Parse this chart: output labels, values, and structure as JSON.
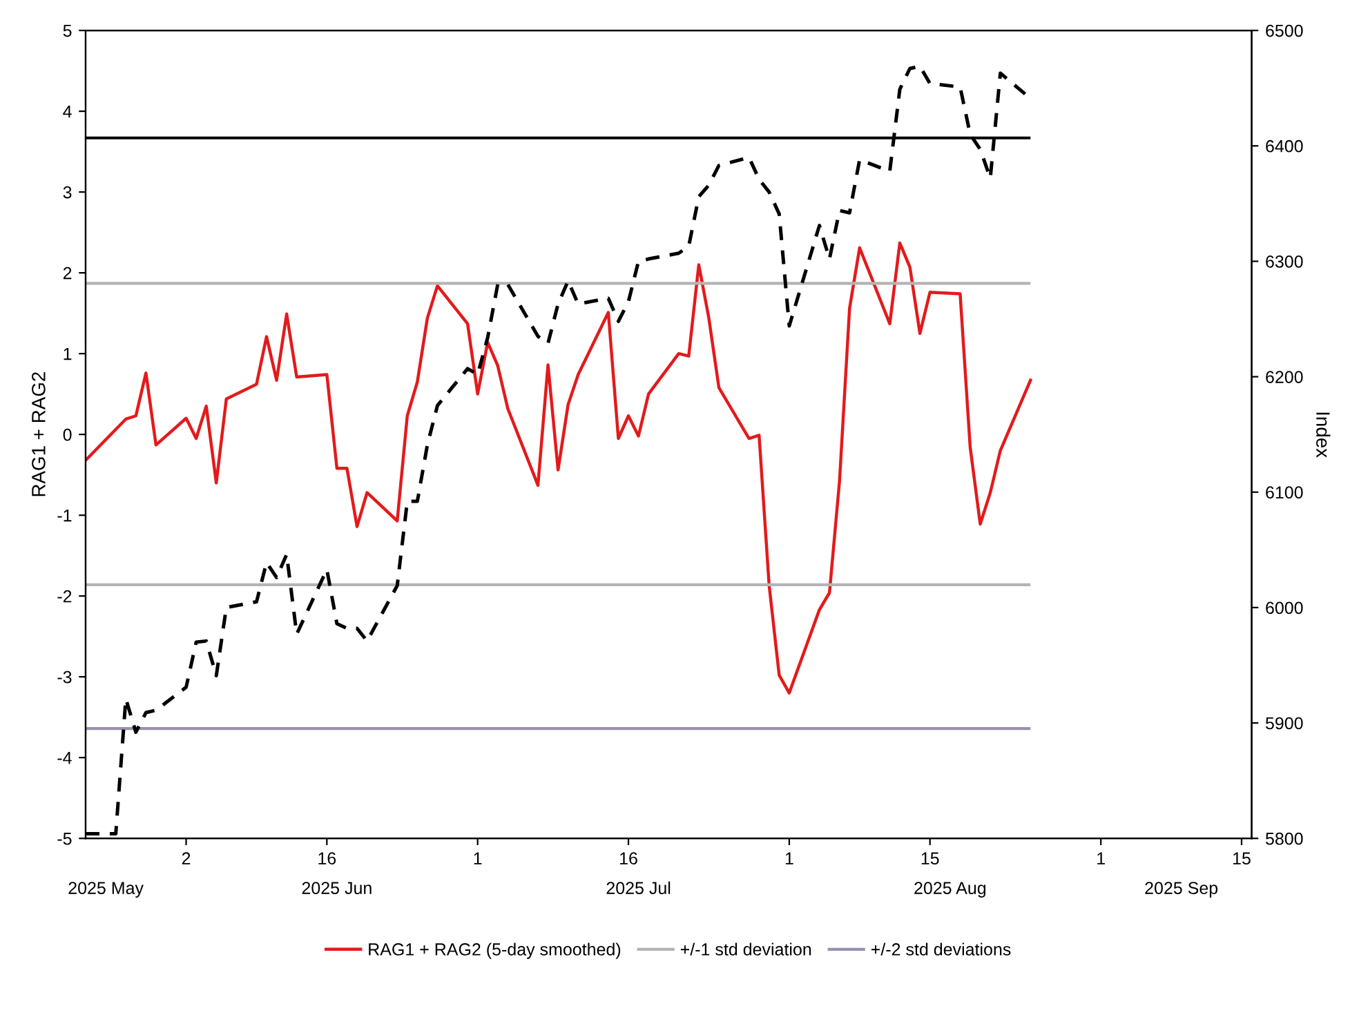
{
  "chart_data": {
    "type": "line",
    "ylabel": "RAG1 + RAG2",
    "y2label": "Index",
    "xlim": [
      "2025-05-23",
      "2025-09-16"
    ],
    "x2lim": [
      "2025-05-23",
      "2025-09-16"
    ],
    "xticks": [
      {
        "value": "2025-06-02",
        "label": "2"
      },
      {
        "value": "2025-06-16",
        "label": "16"
      },
      {
        "value": "2025-07-01",
        "label": "1"
      },
      {
        "value": "2025-07-16",
        "label": "16"
      },
      {
        "value": "2025-08-01",
        "label": "1"
      },
      {
        "value": "2025-08-15",
        "label": "15"
      },
      {
        "value": "2025-09-01",
        "label": "1"
      },
      {
        "value": "2025-09-15",
        "label": "15"
      }
    ],
    "x2ticks": [
      {
        "value": "2025-05-25",
        "label": "2025 May"
      },
      {
        "value": "2025-06-17",
        "label": "2025 Jun"
      },
      {
        "value": "2025-07-17",
        "label": "2025 Jul"
      },
      {
        "value": "2025-08-17",
        "label": "2025 Aug"
      },
      {
        "value": "2025-09-09",
        "label": "2025 Sep"
      }
    ],
    "ylim": [
      -5,
      5
    ],
    "yticks": [
      -5,
      -4,
      -3,
      -2,
      -1,
      0,
      1,
      2,
      3,
      4,
      5
    ],
    "y2lim": [
      5800,
      6500
    ],
    "y2ticks": [
      5800,
      5900,
      6000,
      6100,
      6200,
      6300,
      6400,
      6500
    ],
    "grid": false,
    "legend": "bottom",
    "marker": "none",
    "series": [
      {
        "name": "RAG1 + RAG2 (5-day smoothed)",
        "color": "#e31a1c",
        "line_style": "solid",
        "x": [
          "2025-05-23",
          "2025-05-27",
          "2025-05-28",
          "2025-05-29",
          "2025-05-30",
          "2025-06-02",
          "2025-06-03",
          "2025-06-04",
          "2025-06-05",
          "2025-06-06",
          "2025-06-09",
          "2025-06-10",
          "2025-06-11",
          "2025-06-12",
          "2025-06-13",
          "2025-06-16",
          "2025-06-17",
          "2025-06-18",
          "2025-06-19",
          "2025-06-20",
          "2025-06-23",
          "2025-06-24",
          "2025-06-25",
          "2025-06-26",
          "2025-06-27",
          "2025-06-30",
          "2025-07-01",
          "2025-07-02",
          "2025-07-03",
          "2025-07-04",
          "2025-07-07",
          "2025-07-08",
          "2025-07-09",
          "2025-07-10",
          "2025-07-11",
          "2025-07-14",
          "2025-07-15",
          "2025-07-16",
          "2025-07-17",
          "2025-07-18",
          "2025-07-21",
          "2025-07-22",
          "2025-07-23",
          "2025-07-24",
          "2025-07-25",
          "2025-07-28",
          "2025-07-29",
          "2025-07-30",
          "2025-07-31",
          "2025-08-01",
          "2025-08-04",
          "2025-08-05",
          "2025-08-06",
          "2025-08-07",
          "2025-08-08",
          "2025-08-11",
          "2025-08-12",
          "2025-08-13",
          "2025-08-14",
          "2025-08-15",
          "2025-08-18",
          "2025-08-19",
          "2025-08-20",
          "2025-08-21",
          "2025-08-22",
          "2025-08-25"
        ],
        "values": [
          -0.32,
          0.19,
          0.23,
          0.76,
          -0.13,
          0.2,
          -0.05,
          0.35,
          -0.6,
          0.44,
          0.62,
          1.21,
          0.67,
          1.49,
          0.71,
          0.74,
          -0.42,
          -0.42,
          -1.14,
          -0.72,
          -1.07,
          0.23,
          0.65,
          1.44,
          1.84,
          1.37,
          0.5,
          1.14,
          0.85,
          0.32,
          -0.63,
          0.86,
          -0.44,
          0.37,
          0.74,
          1.51,
          -0.05,
          0.23,
          -0.02,
          0.5,
          1.0,
          0.97,
          2.1,
          1.44,
          0.58,
          -0.05,
          -0.01,
          -1.87,
          -2.98,
          -3.2,
          -2.17,
          -1.96,
          -0.58,
          1.56,
          2.31,
          1.37,
          2.37,
          2.07,
          1.25,
          1.76,
          1.74,
          -0.16,
          -1.11,
          -0.72,
          -0.2,
          0.67
        ]
      },
      {
        "color": "#000000",
        "line_style": "dashed",
        "axis": "y2",
        "x": [
          "2025-05-23",
          "2025-05-26",
          "2025-05-27",
          "2025-05-28",
          "2025-05-29",
          "2025-05-30",
          "2025-06-02",
          "2025-06-03",
          "2025-06-04",
          "2025-06-05",
          "2025-06-06",
          "2025-06-09",
          "2025-06-10",
          "2025-06-11",
          "2025-06-12",
          "2025-06-13",
          "2025-06-16",
          "2025-06-17",
          "2025-06-18",
          "2025-06-19",
          "2025-06-20",
          "2025-06-23",
          "2025-06-24",
          "2025-06-25",
          "2025-06-26",
          "2025-06-27",
          "2025-06-30",
          "2025-07-01",
          "2025-07-02",
          "2025-07-03",
          "2025-07-04",
          "2025-07-07",
          "2025-07-08",
          "2025-07-09",
          "2025-07-10",
          "2025-07-11",
          "2025-07-14",
          "2025-07-15",
          "2025-07-16",
          "2025-07-17",
          "2025-07-18",
          "2025-07-21",
          "2025-07-22",
          "2025-07-23",
          "2025-07-24",
          "2025-07-25",
          "2025-07-28",
          "2025-07-29",
          "2025-07-30",
          "2025-07-31",
          "2025-08-01",
          "2025-08-04",
          "2025-08-05",
          "2025-08-06",
          "2025-08-07",
          "2025-08-08",
          "2025-08-11",
          "2025-08-12",
          "2025-08-13",
          "2025-08-14",
          "2025-08-15",
          "2025-08-18",
          "2025-08-19",
          "2025-08-20",
          "2025-08-21",
          "2025-08-22",
          "2025-08-25"
        ],
        "values": [
          5804,
          5804,
          5921,
          5892,
          5909,
          5911,
          5931,
          5970,
          5971,
          5941,
          6000,
          6005,
          6039,
          6026,
          6046,
          5977,
          6033,
          5986,
          5982,
          5982,
          5971,
          6019,
          6092,
          6092,
          6141,
          6175,
          6207,
          6202,
          6234,
          6280,
          6280,
          6235,
          6229,
          6263,
          6283,
          6263,
          6268,
          6248,
          6265,
          6300,
          6302,
          6307,
          6313,
          6356,
          6366,
          6383,
          6390,
          6371,
          6360,
          6341,
          6244,
          6331,
          6302,
          6344,
          6342,
          6388,
          6378,
          6449,
          6467,
          6469,
          6454,
          6451,
          6410,
          6397,
          6372,
          6463,
          6441
        ]
      }
    ],
    "ref_lines": [
      {
        "axis": "y",
        "value": 3.67,
        "color": "#000000",
        "label": null
      },
      {
        "axis": "y",
        "value": 1.87,
        "color": "#b4b4b4",
        "label": "+/-1 std deviation"
      },
      {
        "axis": "y",
        "value": -1.86,
        "color": "#b4b4b4",
        "label": null
      },
      {
        "axis": "y",
        "value": -3.64,
        "color": "#9a8fb0",
        "label": "+/-2 std deviations"
      }
    ]
  }
}
